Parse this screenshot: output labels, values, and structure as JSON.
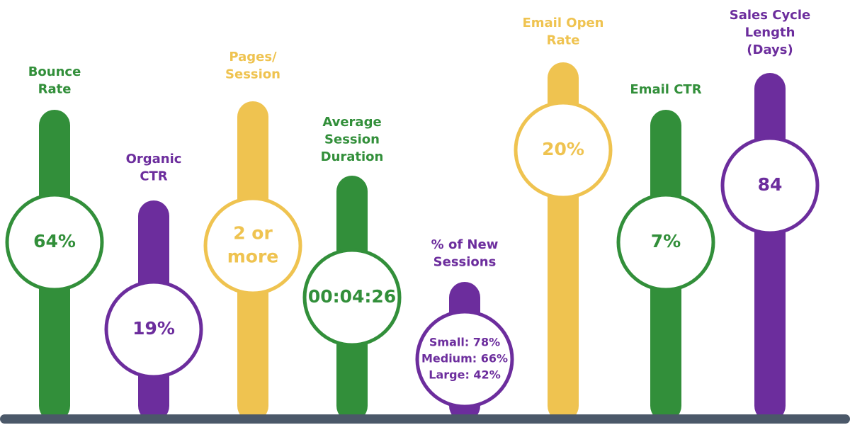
{
  "metrics": [
    {
      "label": [
        "Bounce",
        "Rate"
      ],
      "value": [
        "64%"
      ]
    },
    {
      "label": [
        "Organic",
        "CTR"
      ],
      "value": [
        "19%"
      ]
    },
    {
      "label": [
        "Pages/",
        "Session"
      ],
      "value": [
        "2 or",
        "more"
      ]
    },
    {
      "label": [
        "Average",
        "Session",
        "Duration"
      ],
      "value": [
        "00:04:26"
      ]
    },
    {
      "label": [
        "% of New",
        "Sessions"
      ],
      "value": [
        "Small: 78%",
        "Medium: 66%",
        "Large: 42%"
      ]
    },
    {
      "label": [
        "Email Open",
        "Rate"
      ],
      "value": [
        "20%"
      ]
    },
    {
      "label": [
        "Email CTR"
      ],
      "value": [
        "7%"
      ]
    },
    {
      "label": [
        "Sales Cycle",
        "Length",
        "(Days)"
      ],
      "value": [
        "84"
      ]
    }
  ]
}
